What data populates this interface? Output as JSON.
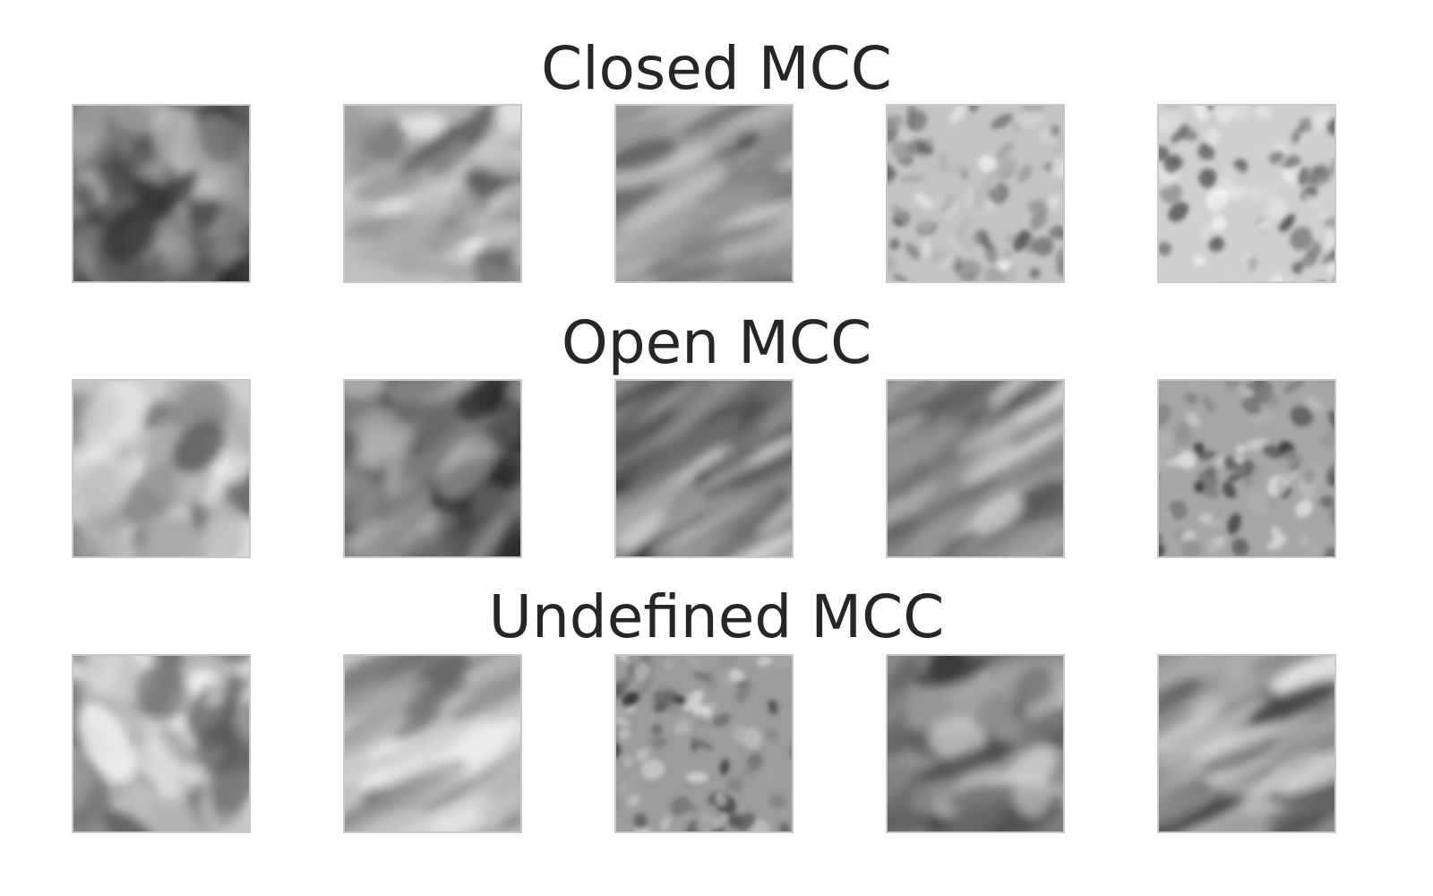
{
  "rows": [
    {
      "title": "Closed MCC",
      "tiles": [
        {
          "base": "#5a5a5a",
          "tone": "dark",
          "pattern": "blotch"
        },
        {
          "base": "#bcbcbc",
          "tone": "light",
          "pattern": "swirl"
        },
        {
          "base": "#9a9a9a",
          "tone": "mid",
          "pattern": "streak"
        },
        {
          "base": "#c4c4c4",
          "tone": "light",
          "pattern": "cells"
        },
        {
          "base": "#cfcfcf",
          "tone": "light",
          "pattern": "holes"
        }
      ]
    },
    {
      "title": "Open MCC",
      "tiles": [
        {
          "base": "#cdcdcd",
          "tone": "light",
          "pattern": "blotch"
        },
        {
          "base": "#7a7a7a",
          "tone": "dark",
          "pattern": "swirl"
        },
        {
          "base": "#8a8a8a",
          "tone": "mid",
          "pattern": "streak"
        },
        {
          "base": "#8e8e8e",
          "tone": "mid",
          "pattern": "streak"
        },
        {
          "base": "#a6a6a6",
          "tone": "mid",
          "pattern": "cells"
        }
      ]
    },
    {
      "title": "Undefined MCC",
      "tiles": [
        {
          "base": "#b4b4b4",
          "tone": "light",
          "pattern": "blotch"
        },
        {
          "base": "#c2c2c2",
          "tone": "light",
          "pattern": "streak"
        },
        {
          "base": "#9c9c9c",
          "tone": "mid",
          "pattern": "cells"
        },
        {
          "base": "#8c8c8c",
          "tone": "mid",
          "pattern": "swirl"
        },
        {
          "base": "#9e9e9e",
          "tone": "mid",
          "pattern": "streak"
        }
      ]
    }
  ]
}
